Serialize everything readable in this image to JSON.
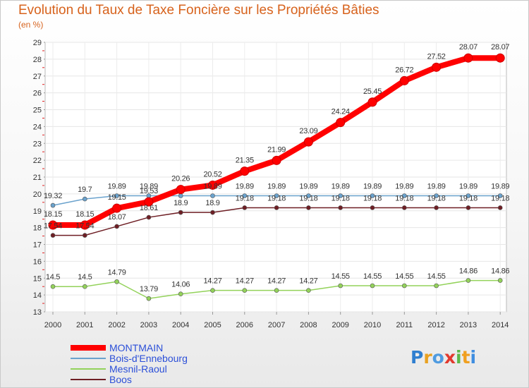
{
  "chart_data": {
    "type": "line",
    "title": "Evolution du Taux de Taxe Foncière sur les Propriétés Bâties",
    "subtitle": "(en %)",
    "x": [
      "2000",
      "2001",
      "2002",
      "2003",
      "2004",
      "2005",
      "2006",
      "2007",
      "2008",
      "2009",
      "2010",
      "2011",
      "2012",
      "2013",
      "2014"
    ],
    "ylim": [
      13,
      29
    ],
    "yticks": [
      13,
      14,
      15,
      16,
      17,
      18,
      19,
      20,
      21,
      22,
      23,
      24,
      25,
      26,
      27,
      28,
      29
    ],
    "grid": true,
    "legend_position": "bottom-left",
    "series": [
      {
        "name": "MONTMAIN",
        "color": "#ff0000",
        "values": [
          18.15,
          18.15,
          19.15,
          19.53,
          20.26,
          20.52,
          21.35,
          21.99,
          23.09,
          24.24,
          25.45,
          26.72,
          27.52,
          28.07,
          28.07
        ],
        "labels": [
          "18.15",
          "18.15",
          "19.15",
          "19.53",
          "20.26",
          "20.52",
          "21.35",
          "21.99",
          "23.09",
          "24.24",
          "25.45",
          "26.72",
          "27.52",
          "28.07",
          "28.07"
        ]
      },
      {
        "name": "Bois-d'Ennebourg",
        "color": "#6aa2cd",
        "values": [
          19.32,
          19.7,
          19.89,
          19.89,
          19.89,
          19.89,
          19.89,
          19.89,
          19.89,
          19.89,
          19.89,
          19.89,
          19.89,
          19.89,
          19.89
        ],
        "labels": [
          "19.32",
          "19.7",
          "19.89",
          "19.89",
          "",
          "19.89",
          "19.89",
          "19.89",
          "19.89",
          "19.89",
          "19.89",
          "19.89",
          "19.89",
          "19.89",
          "19.89"
        ]
      },
      {
        "name": "Mesnil-Raoul",
        "color": "#93d25a",
        "values": [
          14.5,
          14.5,
          14.79,
          13.79,
          14.06,
          14.27,
          14.27,
          14.27,
          14.27,
          14.55,
          14.55,
          14.55,
          14.55,
          14.86,
          14.86
        ],
        "labels": [
          "14.5",
          "14.5",
          "14.79",
          "13.79",
          "14.06",
          "14.27",
          "14.27",
          "14.27",
          "14.27",
          "14.55",
          "14.55",
          "14.55",
          "14.55",
          "14.86",
          "14.86"
        ]
      },
      {
        "name": "Boos",
        "color": "#6e1e24",
        "values": [
          17.54,
          17.54,
          18.07,
          18.61,
          18.9,
          18.9,
          19.18,
          19.18,
          19.18,
          19.18,
          19.18,
          19.18,
          19.18,
          19.18,
          19.18
        ],
        "labels": [
          "17.54",
          "17.54",
          "18.07",
          "18.61",
          "18.9",
          "18.9",
          "19.18",
          "19.18",
          "19.18",
          "19.18",
          "19.18",
          "19.18",
          "19.18",
          "19.18",
          "19.18"
        ]
      }
    ]
  },
  "logo": {
    "text": "Proxiti"
  }
}
